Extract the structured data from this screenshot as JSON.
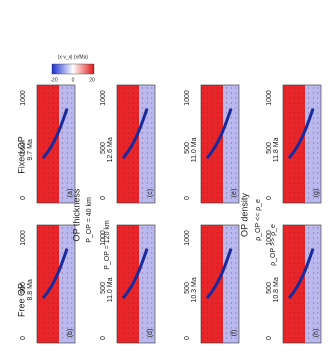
{
  "figure": {
    "colorbar": {
      "label": "|x·v_x| (x/Ma)",
      "ticks": [
        "-20",
        "0",
        "20"
      ]
    },
    "groups": [
      {
        "title": "OP thickness",
        "conditions": [
          "P_OP = 40 km",
          "P_OP = 120 km"
        ]
      },
      {
        "title": "OP density",
        "conditions": [
          "ρ_OP << ρ_e",
          "ρ_OP >> ρ_e"
        ]
      }
    ],
    "row_labels": [
      "Fixed OP",
      "Free OP"
    ],
    "panels": [
      {
        "letter": "(a)",
        "age": "9.7 Ma"
      },
      {
        "letter": "(b)",
        "age": "8.8 Ma"
      },
      {
        "letter": "(c)",
        "age": "12.6 Ma"
      },
      {
        "letter": "(d)",
        "age": "11.0 Ma"
      },
      {
        "letter": "(e)",
        "age": "11.0 Ma"
      },
      {
        "letter": "(f)",
        "age": "10.3 Ma"
      },
      {
        "letter": "(g)",
        "age": "11.8 Ma"
      },
      {
        "letter": "(h)",
        "age": "10.8 Ma"
      }
    ],
    "axis_ticks": [
      "0",
      "500",
      "1000"
    ]
  }
}
